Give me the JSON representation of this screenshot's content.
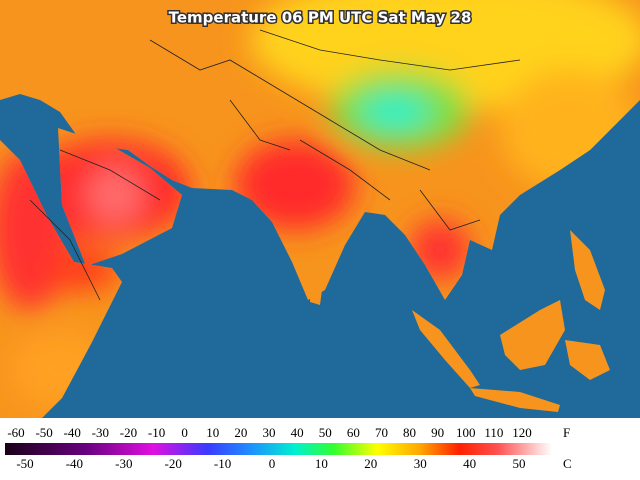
{
  "title": "Temperature 06 PM UTC Sat May 28",
  "legend": {
    "fahrenheit": {
      "unit": "F",
      "labels": [
        -60,
        -50,
        -40,
        -30,
        -20,
        -10,
        0,
        10,
        20,
        30,
        40,
        50,
        60,
        70,
        80,
        90,
        100,
        110,
        120
      ]
    },
    "celsius": {
      "unit": "C",
      "labels": [
        -50,
        -40,
        -30,
        -20,
        -10,
        0,
        10,
        20,
        30,
        40,
        50
      ]
    }
  }
}
